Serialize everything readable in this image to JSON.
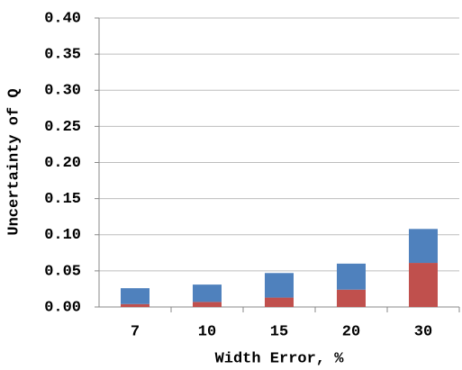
{
  "chart_data": {
    "type": "stacked_bar",
    "x_label": "Width Error, %",
    "y_label": "Uncertainty of Q",
    "categories": [
      "7",
      "10",
      "15",
      "20",
      "30"
    ],
    "series": [
      {
        "color": "#c0504d",
        "values": [
          0.004,
          0.007,
          0.013,
          0.024,
          0.061
        ]
      },
      {
        "color": "#4f81bd",
        "values": [
          0.022,
          0.024,
          0.034,
          0.036,
          0.047
        ]
      }
    ],
    "ylim": [
      0,
      0.4
    ],
    "yticks": [
      {
        "value": 0,
        "label": "0.00"
      },
      {
        "value": 0.05,
        "label": "0.05"
      },
      {
        "value": 0.1,
        "label": "0.10"
      },
      {
        "value": 0.15,
        "label": "0.15"
      },
      {
        "value": 0.2,
        "label": "0.20"
      },
      {
        "value": 0.25,
        "label": "0.25"
      },
      {
        "value": 0.3,
        "label": "0.30"
      },
      {
        "value": 0.35,
        "label": "0.35"
      },
      {
        "value": 0.4,
        "label": "0.40"
      }
    ],
    "grid": true
  }
}
